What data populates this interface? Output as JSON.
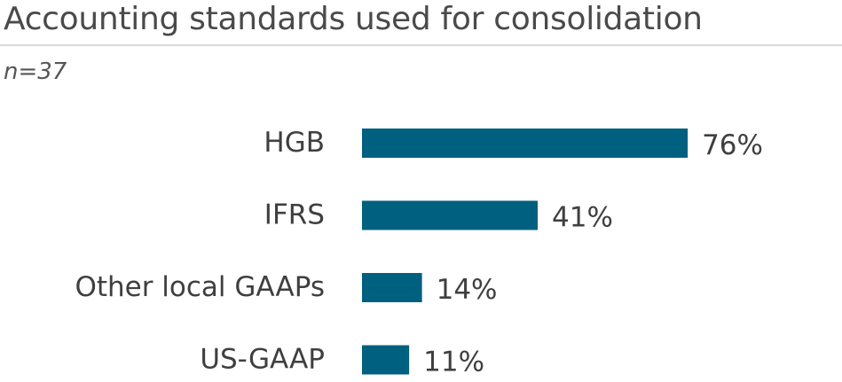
{
  "chart_data": {
    "type": "bar",
    "orientation": "horizontal",
    "title": "Accounting standards used for consolidation",
    "subtitle": "n=37",
    "categories": [
      "HGB",
      "IFRS",
      "Other local GAAPs",
      "US-GAAP"
    ],
    "values": [
      76,
      41,
      14,
      11
    ],
    "value_labels": [
      "76%",
      "41%",
      "14%",
      "11%"
    ],
    "unit": "%",
    "xlim": [
      0,
      100
    ],
    "bar_color": "#006080",
    "grid": false,
    "legend": "none"
  }
}
